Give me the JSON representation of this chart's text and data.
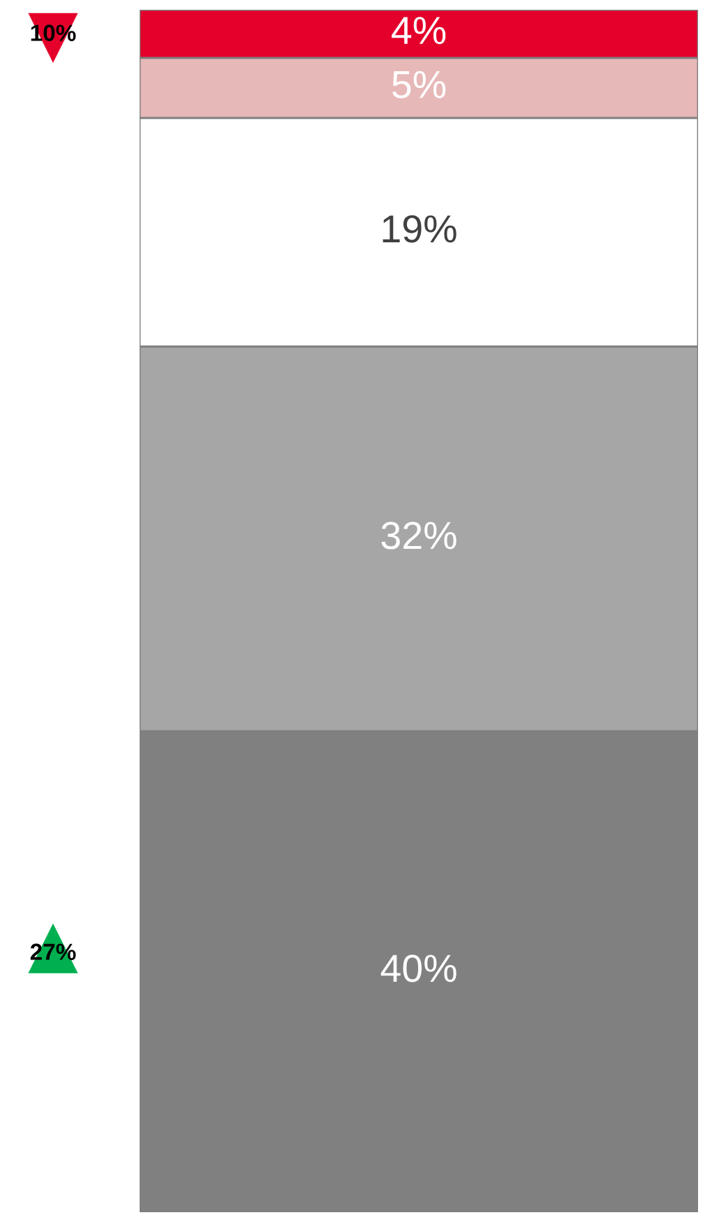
{
  "chart_data": {
    "type": "bar",
    "stacked": true,
    "categories": [
      null
    ],
    "series": [
      {
        "color": "#808080",
        "values": [
          40
        ],
        "value_labels": [
          "40%"
        ]
      },
      {
        "color": "#a6a6a6",
        "values": [
          32
        ],
        "value_labels": [
          "32%"
        ]
      },
      {
        "color": "#ffffff",
        "values": [
          19
        ],
        "value_labels": [
          "19%"
        ]
      },
      {
        "color": "#e6b8b7",
        "values": [
          5
        ],
        "value_labels": [
          "5%"
        ]
      },
      {
        "color": "#e4002b",
        "values": [
          4
        ],
        "value_labels": [
          "4%"
        ]
      }
    ],
    "annotations": [
      "10%",
      "27%"
    ]
  }
}
